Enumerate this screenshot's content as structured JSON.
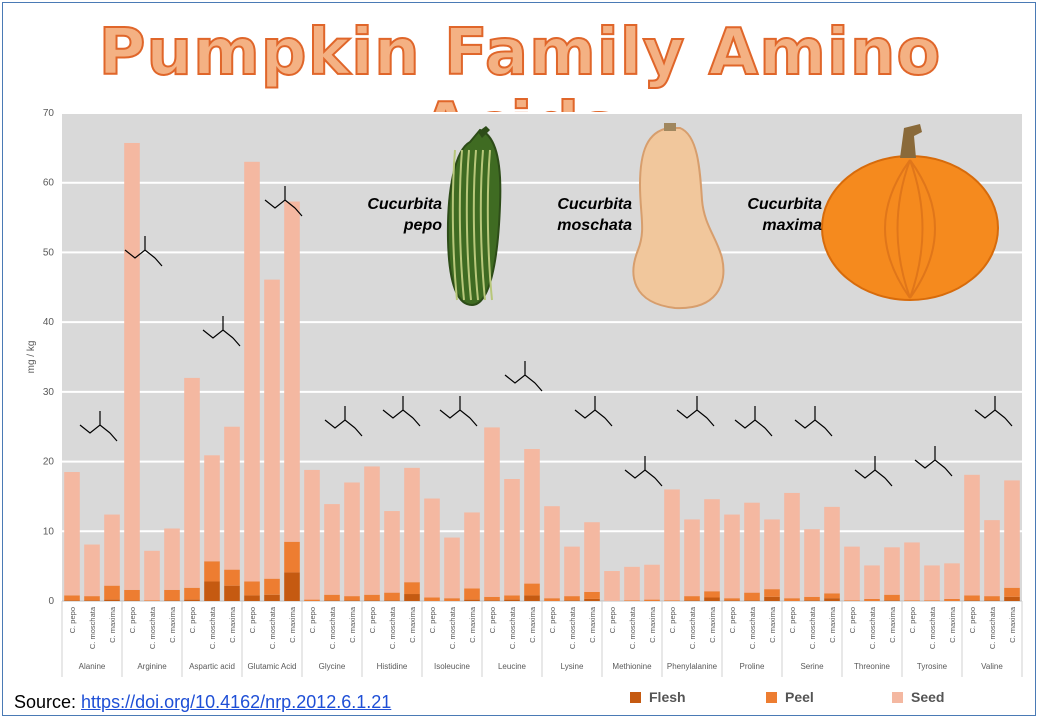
{
  "title": "Pumpkin Family Amino Acids",
  "source_label": "Source: ",
  "source_link": "https://doi.org/10.4162/nrp.2012.6.1.21",
  "species_labels": [
    {
      "line1": "Cucurbita",
      "line2": "pepo"
    },
    {
      "line1": "Cucurbita",
      "line2": "moschata"
    },
    {
      "line1": "Cucurbita",
      "line2": "maxima"
    }
  ],
  "chart_data": {
    "type": "bar",
    "stacked": true,
    "ylabel": "mg / kg",
    "ylim": [
      0,
      70
    ],
    "yticks": [
      0,
      10,
      20,
      30,
      40,
      50,
      60,
      70
    ],
    "grid": true,
    "legend_position": "bottom",
    "sub_categories": [
      "C. pepo",
      "C. moschata",
      "C. maxima"
    ],
    "groups": [
      {
        "name": "Alanine",
        "values": {
          "Flesh": [
            0.1,
            0.1,
            0.2
          ],
          "Peel": [
            0.7,
            0.6,
            2.0
          ],
          "Seed": [
            17.7,
            7.4,
            10.2
          ]
        }
      },
      {
        "name": "Arginine",
        "values": {
          "Flesh": [
            0.1,
            0.0,
            0.1
          ],
          "Peel": [
            1.5,
            0.1,
            1.5
          ],
          "Seed": [
            64.1,
            7.1,
            8.8
          ]
        }
      },
      {
        "name": "Aspartic acid",
        "values": {
          "Flesh": [
            0.2,
            2.8,
            2.2
          ],
          "Peel": [
            1.7,
            2.9,
            2.3
          ],
          "Seed": [
            30.1,
            15.2,
            20.5
          ]
        }
      },
      {
        "name": "Glutamic Acid",
        "values": {
          "Flesh": [
            0.8,
            0.9,
            4.1
          ],
          "Peel": [
            2.0,
            2.3,
            4.4
          ],
          "Seed": [
            60.2,
            42.9,
            48.8
          ]
        }
      },
      {
        "name": "Glycine",
        "values": {
          "Flesh": [
            0.0,
            0.1,
            0.1
          ],
          "Peel": [
            0.2,
            0.8,
            0.6
          ],
          "Seed": [
            18.6,
            13.0,
            16.3
          ]
        }
      },
      {
        "name": "Histidine",
        "values": {
          "Flesh": [
            0.1,
            0.1,
            1.0
          ],
          "Peel": [
            0.8,
            1.1,
            1.7
          ],
          "Seed": [
            18.4,
            11.7,
            16.4
          ]
        }
      },
      {
        "name": "Isoleucine",
        "values": {
          "Flesh": [
            0.0,
            0.0,
            0.2
          ],
          "Peel": [
            0.5,
            0.4,
            1.6
          ],
          "Seed": [
            14.2,
            8.7,
            10.9
          ]
        }
      },
      {
        "name": "Leucine",
        "values": {
          "Flesh": [
            0.1,
            0.2,
            0.8
          ],
          "Peel": [
            0.5,
            0.6,
            1.7
          ],
          "Seed": [
            24.3,
            16.7,
            19.3
          ]
        }
      },
      {
        "name": "Lysine",
        "values": {
          "Flesh": [
            0.0,
            0.1,
            0.3
          ],
          "Peel": [
            0.4,
            0.6,
            1.0
          ],
          "Seed": [
            13.2,
            7.1,
            10.0
          ]
        }
      },
      {
        "name": "Methionine",
        "values": {
          "Flesh": [
            0.0,
            0.0,
            0.0
          ],
          "Peel": [
            0.0,
            0.1,
            0.2
          ],
          "Seed": [
            4.3,
            4.8,
            5.0
          ]
        }
      },
      {
        "name": "Phenylalanine",
        "values": {
          "Flesh": [
            0.0,
            0.1,
            0.5
          ],
          "Peel": [
            0.1,
            0.6,
            0.9
          ],
          "Seed": [
            15.9,
            11.0,
            13.2
          ]
        }
      },
      {
        "name": "Proline",
        "values": {
          "Flesh": [
            0.1,
            0.1,
            0.6
          ],
          "Peel": [
            0.3,
            1.1,
            1.1
          ],
          "Seed": [
            12.0,
            12.9,
            10.0
          ]
        }
      },
      {
        "name": "Serine",
        "values": {
          "Flesh": [
            0.0,
            0.1,
            0.4
          ],
          "Peel": [
            0.4,
            0.5,
            0.7
          ],
          "Seed": [
            15.1,
            9.7,
            12.4
          ]
        }
      },
      {
        "name": "Threonine",
        "values": {
          "Flesh": [
            0.0,
            0.0,
            0.1
          ],
          "Peel": [
            0.1,
            0.3,
            0.8
          ],
          "Seed": [
            7.7,
            4.8,
            6.8
          ]
        }
      },
      {
        "name": "Tyrosine",
        "values": {
          "Flesh": [
            0.0,
            0.0,
            0.0
          ],
          "Peel": [
            0.1,
            0.1,
            0.3
          ],
          "Seed": [
            8.3,
            5.0,
            5.1
          ]
        }
      },
      {
        "name": "Valine",
        "values": {
          "Flesh": [
            0.1,
            0.1,
            0.6
          ],
          "Peel": [
            0.7,
            0.6,
            1.3
          ],
          "Seed": [
            17.3,
            10.9,
            15.4
          ]
        }
      }
    ],
    "series": [
      {
        "name": "Flesh",
        "color": "#c55a11"
      },
      {
        "name": "Peel",
        "color": "#ed7d31"
      },
      {
        "name": "Seed",
        "color": "#f4b8a1"
      }
    ],
    "background_colors": {
      "plot": "#d9d9d9",
      "grid": "#ffffff"
    }
  }
}
